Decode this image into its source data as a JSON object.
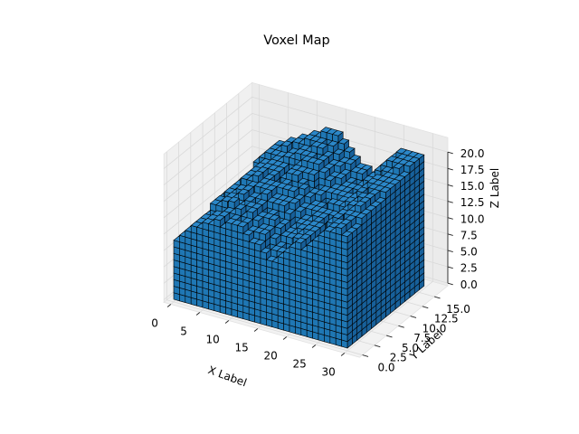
{
  "chart_data": {
    "type": "voxel",
    "title": "Voxel Map",
    "xlabel": "X Label",
    "ylabel": "Y Label",
    "zlabel": "Z Label",
    "xlim": [
      0,
      30
    ],
    "ylim": [
      0,
      16
    ],
    "zlim": [
      0,
      20
    ],
    "x_ticks": [
      "0",
      "5",
      "10",
      "15",
      "20",
      "25",
      "30"
    ],
    "y_ticks": [
      "0.0",
      "2.5",
      "5.0",
      "7.5",
      "10.0",
      "12.5",
      "15.0"
    ],
    "z_ticks": [
      "0.0",
      "2.5",
      "5.0",
      "7.5",
      "10.0",
      "12.5",
      "15.0",
      "17.5",
      "20.0"
    ],
    "grid": true,
    "voxel_color": "#1f77b4",
    "edge_color": "#000000",
    "grid_size": {
      "x": 30,
      "y": 16
    },
    "front_profile_z": [
      9,
      10,
      11,
      12,
      12,
      13,
      13,
      14,
      13,
      14,
      14,
      14,
      13,
      12,
      12,
      11,
      10,
      10,
      11,
      12,
      13,
      14,
      13,
      14,
      15,
      16,
      17,
      17,
      18,
      17
    ],
    "back_profile_z": [
      10,
      11,
      12,
      14,
      15,
      16,
      16,
      17,
      17,
      18,
      18,
      19,
      19,
      20,
      20,
      20,
      19,
      18,
      17,
      16,
      16,
      15,
      16,
      17,
      18,
      19,
      20,
      20,
      20,
      20
    ]
  }
}
